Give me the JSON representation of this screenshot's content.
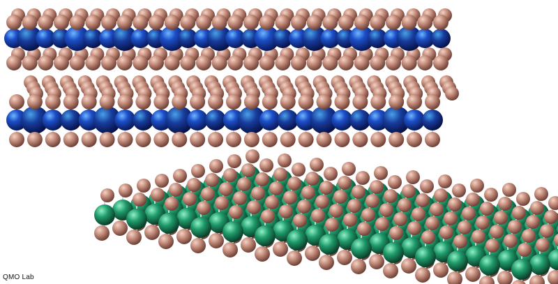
{
  "credit": {
    "text": "QMO Lab"
  },
  "colors": {
    "background": "#ffffff",
    "chalcogen_atom": "#c08a7a",
    "metal_atom_blue": "#1f3fae",
    "metal_atom_green": "#1f9a6a",
    "bond": "#d8dde3"
  },
  "scene": {
    "description_layers": [
      "top-crystal-layer",
      "middle-crystal-layer",
      "bottom-crystal-layer"
    ]
  }
}
